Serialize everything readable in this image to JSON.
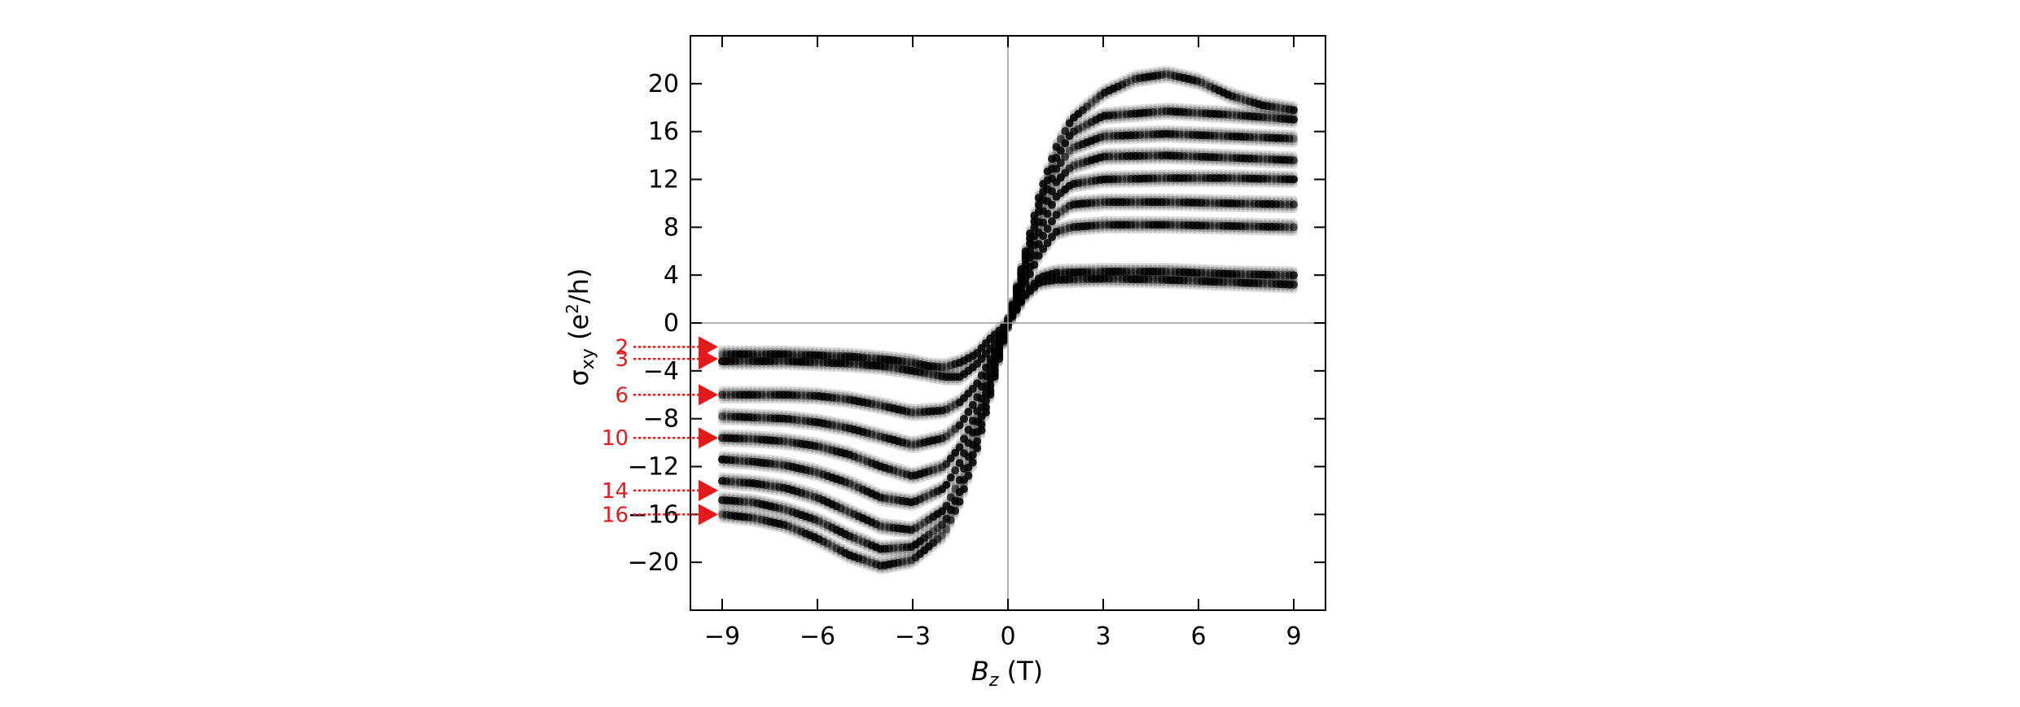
{
  "chart_data": {
    "type": "scatter",
    "xlabel": {
      "var": "B",
      "sub": "z",
      "unit": " (T)"
    },
    "ylabel": {
      "var": "σ",
      "sub": "xy",
      "pre": " (e",
      "sup": "2",
      "post": "/h)"
    },
    "xlim": [
      -10,
      10
    ],
    "ylim": [
      -24,
      24
    ],
    "xticks": [
      -9,
      -6,
      -3,
      0,
      3,
      6,
      9
    ],
    "xtick_labels": [
      "−9",
      "−6",
      "−3",
      "0",
      "3",
      "6",
      "9"
    ],
    "yticks": [
      20,
      16,
      12,
      8,
      4,
      0,
      -4,
      -8,
      -12,
      -16,
      -20
    ],
    "ytick_labels": [
      "20",
      "16",
      "12",
      "8",
      "4",
      "0",
      "−4",
      "−8",
      "−12",
      "−16",
      "−20"
    ],
    "grid": false,
    "reference_lines": {
      "horizontal_y": 0,
      "vertical_x": 0
    },
    "marker_color": "#000000",
    "marker_alpha": "variable (density-shaded)",
    "plateau_annotations": {
      "color": "#e31a1c",
      "side": "left",
      "labels": [
        "2",
        "3",
        "6",
        "10",
        "14",
        "16"
      ],
      "y_values": [
        -2,
        -3,
        -6,
        -9.6,
        -14,
        -16
      ]
    },
    "series": [
      {
        "values": [
          [
            -9,
            -2.6
          ],
          [
            -8,
            -2.6
          ],
          [
            -7,
            -2.6
          ],
          [
            -6,
            -2.7
          ],
          [
            -5,
            -2.8
          ],
          [
            -4,
            -3.0
          ],
          [
            -3,
            -3.3
          ],
          [
            -2.5,
            -3.6
          ],
          [
            -2,
            -3.7
          ],
          [
            -1.5,
            -3.3
          ],
          [
            -1,
            -2.6
          ],
          [
            -0.6,
            -1.4
          ],
          [
            -0.3,
            -0.7
          ],
          [
            0,
            0
          ],
          [
            0.3,
            1.2
          ],
          [
            0.6,
            2.6
          ],
          [
            1,
            3.8
          ],
          [
            1.5,
            4.2
          ],
          [
            3,
            4.3
          ],
          [
            5,
            4.3
          ],
          [
            7,
            4.1
          ],
          [
            9,
            4.0
          ]
        ]
      },
      {
        "values": [
          [
            -9,
            -3.2
          ],
          [
            -8,
            -3.2
          ],
          [
            -7,
            -3.2
          ],
          [
            -6,
            -3.3
          ],
          [
            -5,
            -3.4
          ],
          [
            -4,
            -3.6
          ],
          [
            -3,
            -4.0
          ],
          [
            -2,
            -4.5
          ],
          [
            -1.5,
            -4.5
          ],
          [
            -1,
            -3.5
          ],
          [
            -0.5,
            -2.0
          ],
          [
            0,
            0
          ],
          [
            0.5,
            2.2
          ],
          [
            1,
            3.4
          ],
          [
            1.5,
            3.6
          ],
          [
            3,
            3.7
          ],
          [
            5,
            3.6
          ],
          [
            7,
            3.4
          ],
          [
            9,
            3.2
          ]
        ]
      },
      {
        "values": [
          [
            -9,
            -6.0
          ],
          [
            -8,
            -6.0
          ],
          [
            -7,
            -6.0
          ],
          [
            -6,
            -6.1
          ],
          [
            -5,
            -6.4
          ],
          [
            -4,
            -6.9
          ],
          [
            -3,
            -7.5
          ],
          [
            -2,
            -7.3
          ],
          [
            -1.5,
            -6.6
          ],
          [
            -1,
            -5.2
          ],
          [
            -0.5,
            -2.8
          ],
          [
            0,
            0
          ],
          [
            0.5,
            3.0
          ],
          [
            1,
            5.8
          ],
          [
            1.5,
            7.6
          ],
          [
            2,
            8.0
          ],
          [
            3,
            8.2
          ],
          [
            5,
            8.2
          ],
          [
            7,
            8.1
          ],
          [
            9,
            8.0
          ]
        ]
      },
      {
        "values": [
          [
            -9,
            -9.6
          ],
          [
            -8,
            -9.7
          ],
          [
            -7,
            -9.9
          ],
          [
            -6,
            -10.3
          ],
          [
            -5,
            -11.0
          ],
          [
            -4,
            -12.0
          ],
          [
            -3,
            -12.8
          ],
          [
            -2,
            -12.0
          ],
          [
            -1.5,
            -10.3
          ],
          [
            -1,
            -7.6
          ],
          [
            -0.5,
            -3.8
          ],
          [
            0,
            0
          ],
          [
            0.5,
            4.0
          ],
          [
            1,
            7.8
          ],
          [
            1.5,
            10.5
          ],
          [
            2,
            11.6
          ],
          [
            3,
            12.0
          ],
          [
            5,
            12.1
          ],
          [
            7,
            12.1
          ],
          [
            9,
            12.0
          ]
        ]
      },
      {
        "values": [
          [
            -9,
            -13.2
          ],
          [
            -8,
            -13.4
          ],
          [
            -7,
            -13.8
          ],
          [
            -6,
            -14.6
          ],
          [
            -5,
            -15.8
          ],
          [
            -4,
            -17.0
          ],
          [
            -3,
            -17.3
          ],
          [
            -2,
            -15.6
          ],
          [
            -1.5,
            -13.0
          ],
          [
            -1,
            -9.4
          ],
          [
            -0.5,
            -4.7
          ],
          [
            0,
            0
          ],
          [
            0.5,
            4.8
          ],
          [
            1,
            9.6
          ],
          [
            1.5,
            12.8
          ],
          [
            2,
            14.6
          ],
          [
            3,
            15.6
          ],
          [
            5,
            15.8
          ],
          [
            7,
            15.6
          ],
          [
            9,
            15.4
          ]
        ]
      },
      {
        "values": [
          [
            -9,
            -16.0
          ],
          [
            -8,
            -16.3
          ],
          [
            -7,
            -16.9
          ],
          [
            -6,
            -18.0
          ],
          [
            -5,
            -19.4
          ],
          [
            -4,
            -20.3
          ],
          [
            -3,
            -19.8
          ],
          [
            -2,
            -17.6
          ],
          [
            -1.5,
            -14.8
          ],
          [
            -1,
            -10.8
          ],
          [
            -0.5,
            -5.4
          ],
          [
            0,
            0
          ],
          [
            0.5,
            5.4
          ],
          [
            1,
            10.8
          ],
          [
            1.5,
            14.6
          ],
          [
            2,
            17.0
          ],
          [
            3,
            19.2
          ],
          [
            4,
            20.4
          ],
          [
            5,
            20.8
          ],
          [
            6,
            20.2
          ],
          [
            7,
            19.0
          ],
          [
            8,
            18.2
          ],
          [
            9,
            17.8
          ]
        ]
      },
      {
        "values": [
          [
            -9,
            -11.4
          ],
          [
            -8,
            -11.6
          ],
          [
            -7,
            -11.9
          ],
          [
            -6,
            -12.5
          ],
          [
            -5,
            -13.4
          ],
          [
            -4,
            -14.6
          ],
          [
            -3,
            -15.0
          ],
          [
            -2,
            -13.8
          ],
          [
            -1.5,
            -11.6
          ],
          [
            -1,
            -8.5
          ],
          [
            -0.5,
            -4.2
          ],
          [
            0,
            0
          ],
          [
            0.5,
            4.4
          ],
          [
            1,
            8.7
          ],
          [
            1.5,
            11.7
          ],
          [
            2,
            13.1
          ],
          [
            3,
            13.9
          ],
          [
            5,
            14.0
          ],
          [
            7,
            13.8
          ],
          [
            9,
            13.6
          ]
        ]
      },
      {
        "values": [
          [
            -9,
            -7.8
          ],
          [
            -8,
            -7.9
          ],
          [
            -7,
            -8.0
          ],
          [
            -6,
            -8.3
          ],
          [
            -5,
            -8.8
          ],
          [
            -4,
            -9.5
          ],
          [
            -3,
            -10.2
          ],
          [
            -2,
            -9.6
          ],
          [
            -1.5,
            -8.5
          ],
          [
            -1,
            -6.4
          ],
          [
            -0.5,
            -3.2
          ],
          [
            0,
            0
          ],
          [
            0.5,
            3.4
          ],
          [
            1,
            6.8
          ],
          [
            1.5,
            9.0
          ],
          [
            2,
            9.9
          ],
          [
            3,
            10.1
          ],
          [
            5,
            10.1
          ],
          [
            7,
            10.0
          ],
          [
            9,
            9.9
          ]
        ]
      },
      {
        "values": [
          [
            -9,
            -14.8
          ],
          [
            -8,
            -15.0
          ],
          [
            -7,
            -15.6
          ],
          [
            -6,
            -16.5
          ],
          [
            -5,
            -17.8
          ],
          [
            -4,
            -18.9
          ],
          [
            -3,
            -18.7
          ],
          [
            -2,
            -16.7
          ],
          [
            -1.5,
            -14.0
          ],
          [
            -1,
            -10.2
          ],
          [
            -0.5,
            -5.1
          ],
          [
            0,
            0
          ],
          [
            0.5,
            5.1
          ],
          [
            1,
            10.2
          ],
          [
            1.5,
            13.7
          ],
          [
            2,
            15.9
          ],
          [
            3,
            17.3
          ],
          [
            5,
            17.7
          ],
          [
            7,
            17.4
          ],
          [
            9,
            17.0
          ]
        ]
      }
    ]
  }
}
